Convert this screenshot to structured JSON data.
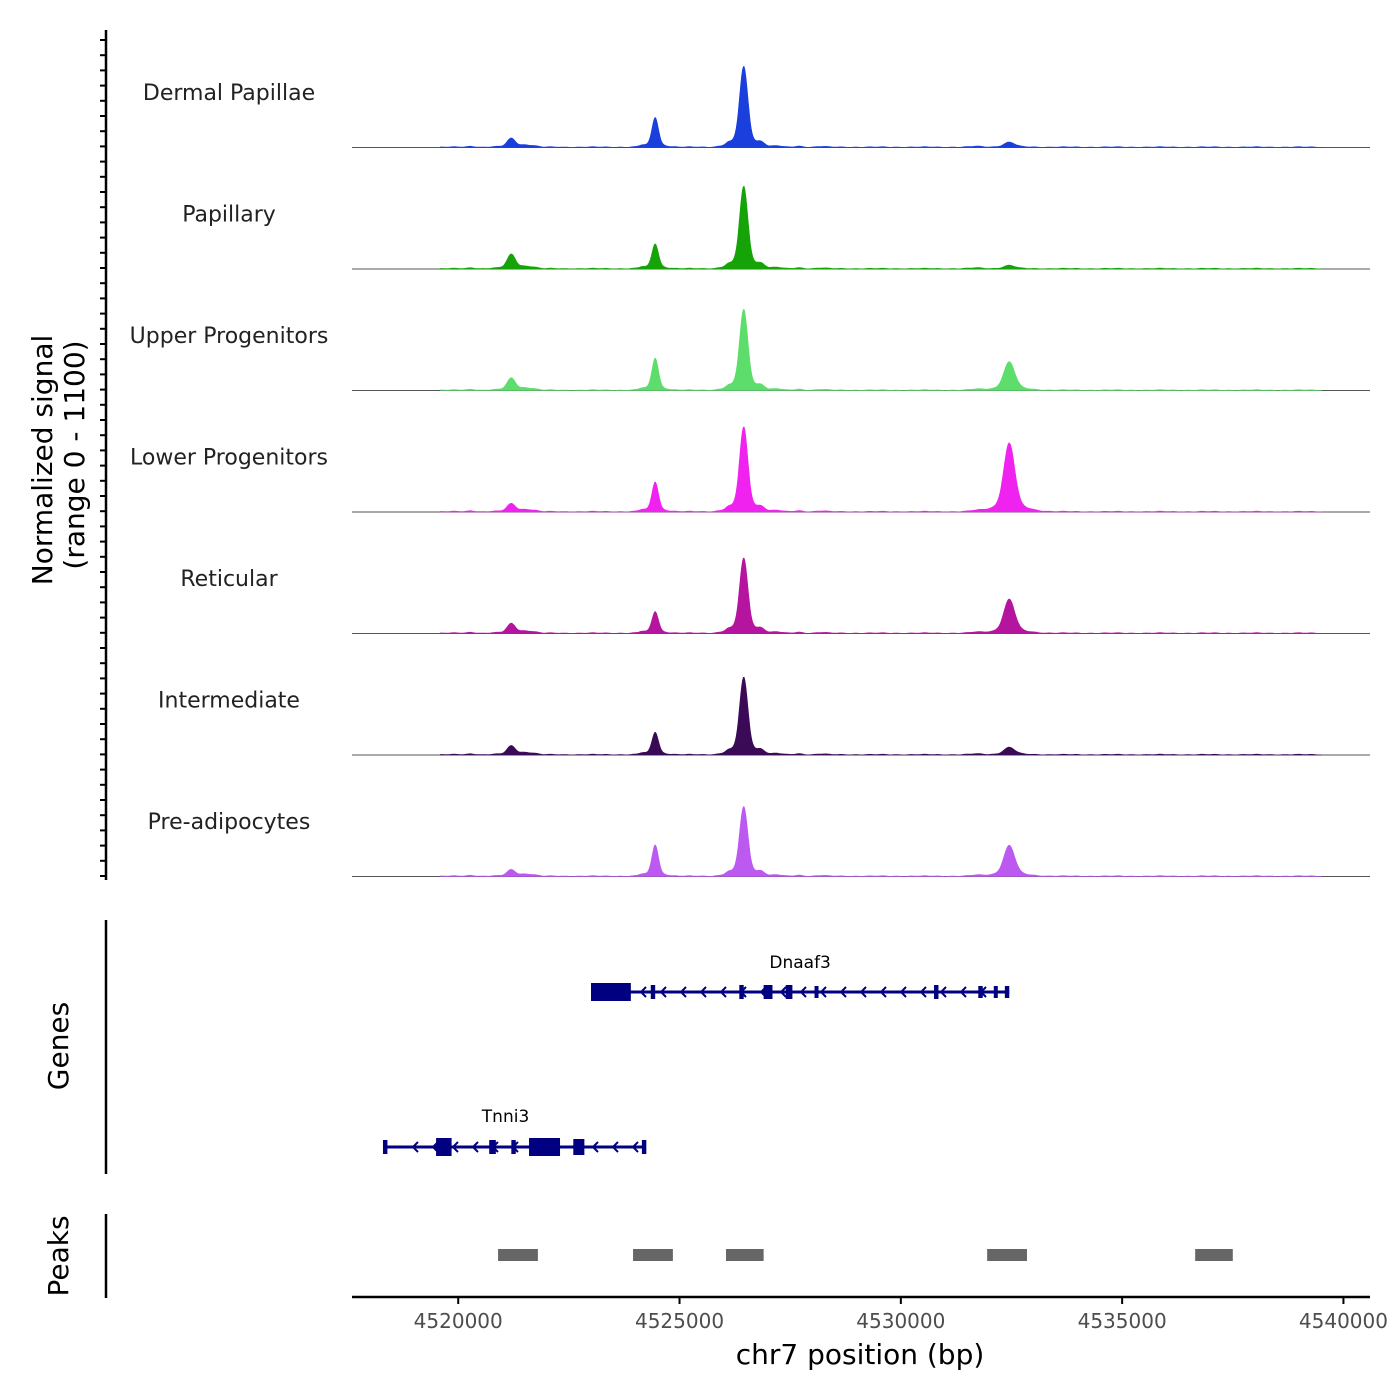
{
  "chart_data": {
    "type": "area",
    "title": "",
    "xlabel": "chr7 position (bp)",
    "ylabel": "Normalized signal",
    "ylabel_range": "(range 0 - 1100)",
    "xlim": [
      4517600,
      4540600
    ],
    "ylim": [
      0,
      1100
    ],
    "x_ticks": [
      4520000,
      4525000,
      4530000,
      4535000,
      4540000
    ],
    "x_tick_labels": [
      "4520000",
      "4525000",
      "4530000",
      "4535000",
      "4540000"
    ],
    "base_peaks": [
      {
        "center": 4521200,
        "width": 90
      },
      {
        "center": 4524450,
        "width": 70
      },
      {
        "center": 4526450,
        "width": 90
      },
      {
        "center": 4532450,
        "width": 120
      }
    ],
    "series": [
      {
        "name": "Dermal Papillae",
        "color": "#1a3fdc",
        "peak_values": [
          110,
          370,
          1000,
          60
        ]
      },
      {
        "name": "Papillary",
        "color": "#15a307",
        "peak_values": [
          180,
          310,
          1020,
          40
        ]
      },
      {
        "name": "Upper Progenitors",
        "color": "#5ddd6c",
        "peak_values": [
          150,
          400,
          1000,
          350
        ]
      },
      {
        "name": "Lower Progenitors",
        "color": "#f022ef",
        "peak_values": [
          100,
          370,
          1050,
          850
        ]
      },
      {
        "name": "Reticular",
        "color": "#b5149f",
        "peak_values": [
          120,
          270,
          930,
          420
        ]
      },
      {
        "name": "Intermediate",
        "color": "#3b0a57",
        "peak_values": [
          110,
          280,
          960,
          90
        ]
      },
      {
        "name": "Pre-adipocytes",
        "color": "#bb59f0",
        "peak_values": [
          80,
          390,
          860,
          380
        ]
      }
    ],
    "genes_track": {
      "label": "Genes",
      "color": "#000080",
      "genes": [
        {
          "name": "Dnaaf3",
          "start": 4523000,
          "end": 4532450,
          "strand": "-"
        },
        {
          "name": "Tnni3",
          "start": 4518300,
          "end": 4524200,
          "strand": "-"
        }
      ]
    },
    "peaks_track": {
      "label": "Peaks",
      "color": "#666666",
      "peaks": [
        {
          "start": 4520900,
          "end": 4521800
        },
        {
          "start": 4523950,
          "end": 4524850
        },
        {
          "start": 4526050,
          "end": 4526900
        },
        {
          "start": 4531950,
          "end": 4532850
        },
        {
          "start": 4536650,
          "end": 4537500
        }
      ]
    }
  }
}
